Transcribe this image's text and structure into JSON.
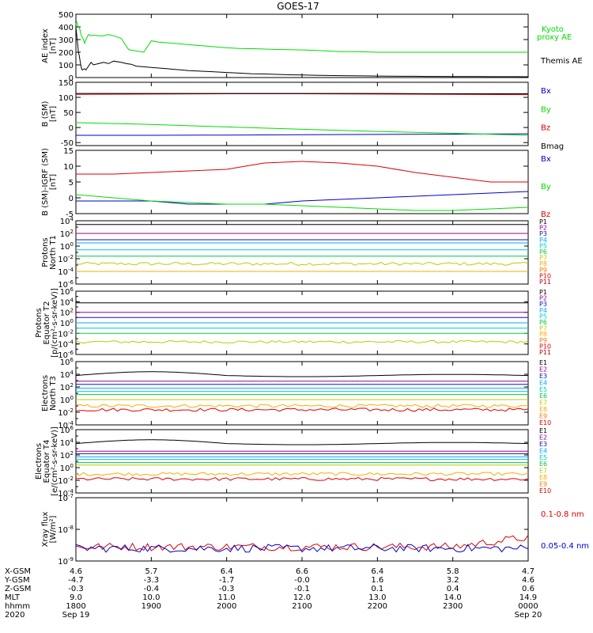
{
  "title": "GOES-17",
  "colors": {
    "black": "#000000",
    "green": "#00dd00",
    "blue": "#0000cc",
    "red": "#dd0000"
  },
  "chart_data": [
    {
      "type": "line",
      "id": "ae",
      "ylabel": [
        "AE index",
        "[nT]"
      ],
      "ylim": [
        0,
        500
      ],
      "yticks": [
        0,
        100,
        200,
        300,
        400,
        500
      ],
      "ytick_labels": [
        "0",
        "100",
        "200",
        "300",
        "400",
        "500"
      ],
      "series": [
        {
          "name": "Kyoto proxy AE",
          "label_lines": [
            "Kyoto",
            "proxy AE"
          ],
          "color": "#00dd00",
          "x": [
            0,
            0.3,
            0.6,
            0.9,
            1.2,
            1.5,
            2.1,
            2.4,
            2.7,
            3.0,
            3.3,
            3.6,
            4.0,
            5,
            6,
            7,
            8,
            9,
            10,
            12,
            14,
            18,
            22,
            26,
            30,
            36,
            42,
            48,
            54,
            60,
            66,
            72,
            78,
            84,
            90,
            96,
            102,
            108,
            114,
            120,
            130,
            140,
            150,
            160,
            170,
            180,
            190,
            200,
            210,
            220,
            230,
            240,
            250,
            260,
            270,
            280,
            290,
            300,
            320,
            340,
            360
          ],
          "y": [
            420,
            435,
            440,
            430,
            425,
            410,
            400,
            395,
            390,
            385,
            375,
            360,
            340,
            320,
            300,
            270,
            300,
            320,
            340,
            330,
            335,
            330,
            330,
            340,
            330,
            310,
            220,
            210,
            200,
            290,
            280,
            275,
            270,
            265,
            260,
            255,
            250,
            245,
            240,
            235,
            230,
            228,
            225,
            222,
            220,
            218,
            215,
            210,
            205,
            205,
            203,
            200,
            200,
            200,
            200,
            200,
            200,
            200,
            200,
            200,
            200
          ]
        },
        {
          "name": "Themis AE",
          "label_lines": [
            "Themis AE"
          ],
          "color": "#000000",
          "x": [
            0,
            0.5,
            1,
            1.5,
            2,
            2.5,
            3,
            3.5,
            4,
            4.5,
            5,
            6,
            7,
            8,
            10,
            12,
            14,
            18,
            22,
            26,
            30,
            36,
            40,
            44,
            48,
            54,
            60,
            66,
            72,
            78,
            84,
            90,
            100,
            110,
            120,
            130,
            140,
            150,
            160,
            170,
            180,
            190,
            200,
            210,
            220,
            230,
            240,
            250,
            260,
            270,
            280,
            290,
            300,
            310,
            320,
            330,
            340,
            350,
            360
          ],
          "y": [
            400,
            350,
            300,
            250,
            200,
            180,
            150,
            120,
            90,
            70,
            60,
            65,
            70,
            60,
            90,
            120,
            100,
            110,
            120,
            110,
            130,
            120,
            110,
            105,
            90,
            85,
            80,
            75,
            70,
            65,
            60,
            55,
            50,
            45,
            40,
            35,
            30,
            28,
            25,
            22,
            20,
            18,
            16,
            15,
            14,
            13,
            12,
            11,
            10,
            10,
            9,
            9,
            8,
            8,
            8,
            7,
            7,
            7,
            6
          ]
        }
      ]
    },
    {
      "type": "line",
      "id": "bsm",
      "ylabel": [
        "B (SM)",
        "[nT]"
      ],
      "ylim": [
        -60,
        150
      ],
      "yticks": [
        -50,
        0,
        50,
        100,
        150
      ],
      "ytick_labels": [
        "-50",
        "0",
        "50",
        "100",
        "150"
      ],
      "series": [
        {
          "name": "Bx",
          "color": "#0000cc",
          "x": [
            0,
            60,
            120,
            180,
            240,
            300,
            360
          ],
          "y": [
            -26,
            -26,
            -25,
            -24,
            -23,
            -22,
            -21
          ]
        },
        {
          "name": "By",
          "color": "#00dd00",
          "x": [
            0,
            60,
            120,
            180,
            240,
            300,
            360
          ],
          "y": [
            16,
            10,
            2,
            -6,
            -13,
            -19,
            -26
          ]
        },
        {
          "name": "Bz",
          "color": "#dd0000",
          "x": [
            0,
            60,
            120,
            180,
            240,
            300,
            360
          ],
          "y": [
            110,
            111,
            112,
            112,
            111,
            110,
            109
          ]
        },
        {
          "name": "Bmag",
          "color": "#000000",
          "x": [
            0,
            60,
            120,
            180,
            240,
            300,
            360
          ],
          "y": [
            113,
            113,
            113,
            113,
            113,
            112,
            112
          ]
        }
      ]
    },
    {
      "type": "line",
      "id": "bsm_igrf",
      "ylabel": [
        "B (SM)-IGRF (SM)",
        "[nT]"
      ],
      "ylim": [
        -5,
        15
      ],
      "yticks": [
        -5,
        0,
        5,
        10,
        15
      ],
      "ytick_labels": [
        "-5",
        "0",
        "5",
        "10",
        "15"
      ],
      "series": [
        {
          "name": "Bx",
          "color": "#0000cc",
          "x": [
            0,
            30,
            60,
            90,
            120,
            150,
            180,
            210,
            240,
            270,
            300,
            330,
            360
          ],
          "y": [
            -1,
            -1,
            -1,
            -2,
            -2,
            -2,
            -1,
            -0.5,
            0,
            0.5,
            1,
            1.5,
            2
          ]
        },
        {
          "name": "By",
          "color": "#00dd00",
          "x": [
            0,
            30,
            60,
            90,
            120,
            150,
            180,
            210,
            240,
            270,
            300,
            330,
            360
          ],
          "y": [
            1,
            0,
            -1,
            -1.5,
            -2,
            -2,
            -2.5,
            -3,
            -3.5,
            -4,
            -4,
            -3.5,
            -3
          ]
        },
        {
          "name": "Bz",
          "color": "#dd0000",
          "x": [
            0,
            30,
            60,
            90,
            120,
            150,
            180,
            210,
            240,
            270,
            300,
            330,
            360
          ],
          "y": [
            7.5,
            7.5,
            8,
            8.5,
            9,
            11,
            11.5,
            11,
            10,
            8,
            6.5,
            5,
            5
          ]
        }
      ]
    },
    {
      "type": "line",
      "id": "protons_t1",
      "log": true,
      "ylabel": [
        "Protons",
        "North T1"
      ],
      "ylim_exp": [
        -6,
        4
      ],
      "ytick_exps": [
        -6,
        -4,
        -2,
        0,
        2,
        4
      ],
      "legend_mode": "list",
      "series": [
        {
          "name": "P1",
          "color": "#000000",
          "level_exp": 3.4
        },
        {
          "name": "P2",
          "color": "#990099",
          "level_exp": 2.0
        },
        {
          "name": "P3",
          "color": "#1111bb",
          "level_exp": 1.0
        },
        {
          "name": "P4",
          "color": "#00aaff",
          "level_exp": 0.5
        },
        {
          "name": "P5",
          "color": "#00cccc",
          "level_exp": -0.6
        },
        {
          "name": "P6",
          "color": "#00cc44",
          "level_exp": -1.6
        },
        {
          "name": "P7",
          "color": "#bbcc00",
          "level_exp": -2.8
        },
        {
          "name": "P8",
          "color": "#ffaa00",
          "level_exp": -4.0
        },
        {
          "name": "P9",
          "color": "#ff7700",
          "level_exp": null
        },
        {
          "name": "P10",
          "color": "#dd0000",
          "level_exp": null
        },
        {
          "name": "P11",
          "color": "#bb0000",
          "level_exp": null
        }
      ]
    },
    {
      "type": "line",
      "id": "protons_t2",
      "log": true,
      "ylabel": [
        "Protons",
        "Equator T2",
        "[p/(cm²-s-sr-keV)]"
      ],
      "ylim_exp": [
        -6,
        6
      ],
      "ytick_exps": [
        -6,
        -4,
        -2,
        0,
        2,
        4,
        6
      ],
      "legend_mode": "list",
      "series": [
        {
          "name": "P1",
          "color": "#000000",
          "level_exp": 3.8
        },
        {
          "name": "P2",
          "color": "#990099",
          "level_exp": 2.0
        },
        {
          "name": "P3",
          "color": "#1111bb",
          "level_exp": 1.0
        },
        {
          "name": "P4",
          "color": "#00aaff",
          "level_exp": 0.0
        },
        {
          "name": "P5",
          "color": "#00cccc",
          "level_exp": -1.0
        },
        {
          "name": "P6",
          "color": "#00cc44",
          "level_exp": -2.0
        },
        {
          "name": "P7",
          "color": "#bbcc00",
          "level_exp": -3.6
        },
        {
          "name": "P8",
          "color": "#ffaa00",
          "level_exp": null
        },
        {
          "name": "P9",
          "color": "#ff7700",
          "level_exp": null
        },
        {
          "name": "P10",
          "color": "#dd0000",
          "level_exp": null
        },
        {
          "name": "P11",
          "color": "#bb0000",
          "level_exp": null
        }
      ]
    },
    {
      "type": "line",
      "id": "electrons_t3",
      "log": true,
      "ylabel": [
        "Electrons",
        "North T3"
      ],
      "ylim_exp": [
        -4,
        6
      ],
      "ytick_exps": [
        -4,
        -2,
        0,
        2,
        4,
        6
      ],
      "legend_mode": "list",
      "series": [
        {
          "name": "E1",
          "color": "#000000",
          "level_exp": 3.8
        },
        {
          "name": "E2",
          "color": "#990099",
          "level_exp": 2.9
        },
        {
          "name": "E3",
          "color": "#1111bb",
          "level_exp": 2.4
        },
        {
          "name": "E4",
          "color": "#00aaff",
          "level_exp": 1.8
        },
        {
          "name": "E5",
          "color": "#00cccc",
          "level_exp": 1.3
        },
        {
          "name": "E6",
          "color": "#00cc44",
          "level_exp": 0.8
        },
        {
          "name": "E7",
          "color": "#bbcc00",
          "level_exp": 0.0
        },
        {
          "name": "E8",
          "color": "#ffaa00",
          "level_exp": -1.0
        },
        {
          "name": "E9",
          "color": "#ff7700",
          "level_exp": null
        },
        {
          "name": "E10",
          "color": "#dd0000",
          "level_exp": -1.6
        }
      ]
    },
    {
      "type": "line",
      "id": "electrons_t4",
      "log": true,
      "ylabel": [
        "Electrons",
        "Equator T4",
        "[e/(cm²-s-sr-keV)]"
      ],
      "ylim_exp": [
        -4,
        6
      ],
      "ytick_exps": [
        -4,
        -2,
        0,
        2,
        4,
        6
      ],
      "legend_mode": "list",
      "series": [
        {
          "name": "E1",
          "color": "#000000",
          "level_exp": 3.8
        },
        {
          "name": "E2",
          "color": "#990099",
          "level_exp": 2.6
        },
        {
          "name": "E3",
          "color": "#1111bb",
          "level_exp": 2.2
        },
        {
          "name": "E4",
          "color": "#00aaff",
          "level_exp": 1.7
        },
        {
          "name": "E5",
          "color": "#00cccc",
          "level_exp": 1.3
        },
        {
          "name": "E6",
          "color": "#00cc44",
          "level_exp": 0.8
        },
        {
          "name": "E7",
          "color": "#bbcc00",
          "level_exp": 0.4
        },
        {
          "name": "E8",
          "color": "#ffaa00",
          "level_exp": -1.0
        },
        {
          "name": "E9",
          "color": "#ff7700",
          "level_exp": null
        },
        {
          "name": "E10",
          "color": "#dd0000",
          "level_exp": -1.8
        }
      ]
    },
    {
      "type": "line",
      "id": "xray",
      "log": true,
      "ylabel": [
        "Xray flux",
        "[W/m²]"
      ],
      "ylim_exp": [
        -9,
        -7
      ],
      "ytick_exps": [
        -9,
        -8,
        -7
      ],
      "series": [
        {
          "name": "0.1-0.8 nm",
          "color": "#dd0000",
          "level_exp": -8.55
        },
        {
          "name": "0.05-0.4 nm",
          "color": "#0000cc",
          "level_exp": -8.6
        }
      ]
    }
  ],
  "time_axis": {
    "rows": [
      {
        "label": "X-GSM",
        "values": [
          "4.6",
          "5.7",
          "6.4",
          "6.6",
          "6.4",
          "5.8",
          "4.7"
        ]
      },
      {
        "label": "Y-GSM",
        "values": [
          "-4.7",
          "-3.3",
          "-1.7",
          "-0.0",
          "1.6",
          "3.2",
          "4.6"
        ]
      },
      {
        "label": "Z-GSM",
        "values": [
          "-0.3",
          "-0.4",
          "-0.3",
          "-0.1",
          "0.1",
          "0.4",
          "0.6"
        ]
      },
      {
        "label": "MLT",
        "values": [
          "9.0",
          "10.0",
          "11.0",
          "12.0",
          "13.0",
          "14.0",
          "14.9"
        ]
      },
      {
        "label": "hhmm",
        "values": [
          "1800",
          "1900",
          "2000",
          "2100",
          "2200",
          "2300",
          "0000"
        ]
      },
      {
        "label": "2020",
        "values": [
          "Sep 19",
          "",
          "",
          "",
          "",
          "",
          "Sep 20"
        ]
      }
    ]
  }
}
